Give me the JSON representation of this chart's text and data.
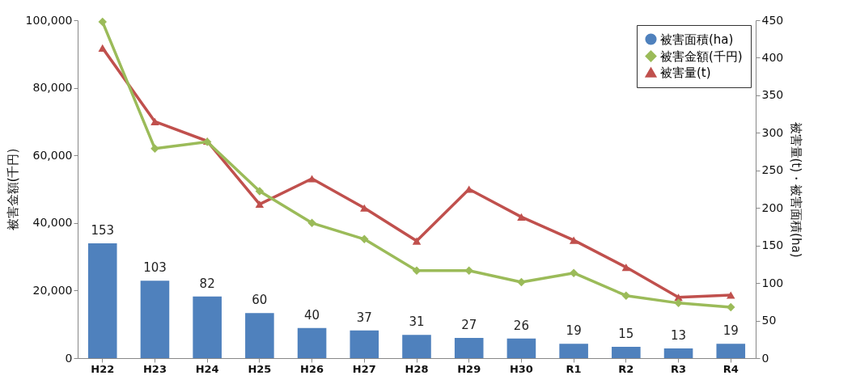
{
  "chart_data": {
    "type": "bar",
    "ylabel": "被害金額(千円)",
    "y2label": "被害量(t)・被害面積(ha)",
    "categories": [
      "H22",
      "H23",
      "H24",
      "H25",
      "H26",
      "H27",
      "H28",
      "H29",
      "H30",
      "R1",
      "R2",
      "R3",
      "R4"
    ],
    "series": [
      {
        "name": "被害面積(ha)",
        "axis": "y2",
        "color": "#4f81bd",
        "values": [
          153,
          103,
          82,
          60,
          40,
          37,
          31,
          27,
          26,
          19,
          15,
          13,
          19
        ],
        "value_labels": [
          "153",
          "103",
          "82",
          "60",
          "40",
          "37",
          "31",
          "27",
          "26",
          "19",
          "15",
          "13",
          "19"
        ]
      },
      {
        "name": "被害金額(千円)",
        "type": "line",
        "marker": "diamond",
        "color": "#9bbb59",
        "values": [
          99500,
          62000,
          64000,
          49400,
          40000,
          35200,
          25900,
          25900,
          22500,
          25200,
          18500,
          16300,
          15100
        ]
      },
      {
        "name": "被害量(t)",
        "type": "line",
        "axis": "y2",
        "marker": "triangle",
        "color": "#c0504d",
        "values": [
          413,
          315,
          289,
          205,
          239,
          200,
          156,
          225,
          188,
          157,
          121,
          81,
          84
        ]
      }
    ],
    "ylim": [
      0,
      100000
    ],
    "yticks": [
      0,
      {
        "value": 20000,
        "label": "20,000"
      },
      {
        "value": 40000,
        "label": "40,000"
      },
      {
        "value": 60000,
        "label": "60,000"
      },
      {
        "value": 80000,
        "label": "80,000"
      },
      {
        "value": 100000,
        "label": "100,000"
      }
    ],
    "y2lim": [
      0,
      450
    ],
    "y2ticks": [
      0,
      50,
      100,
      150,
      200,
      250,
      300,
      350,
      400,
      450
    ],
    "grid": false,
    "legend": "top right"
  }
}
